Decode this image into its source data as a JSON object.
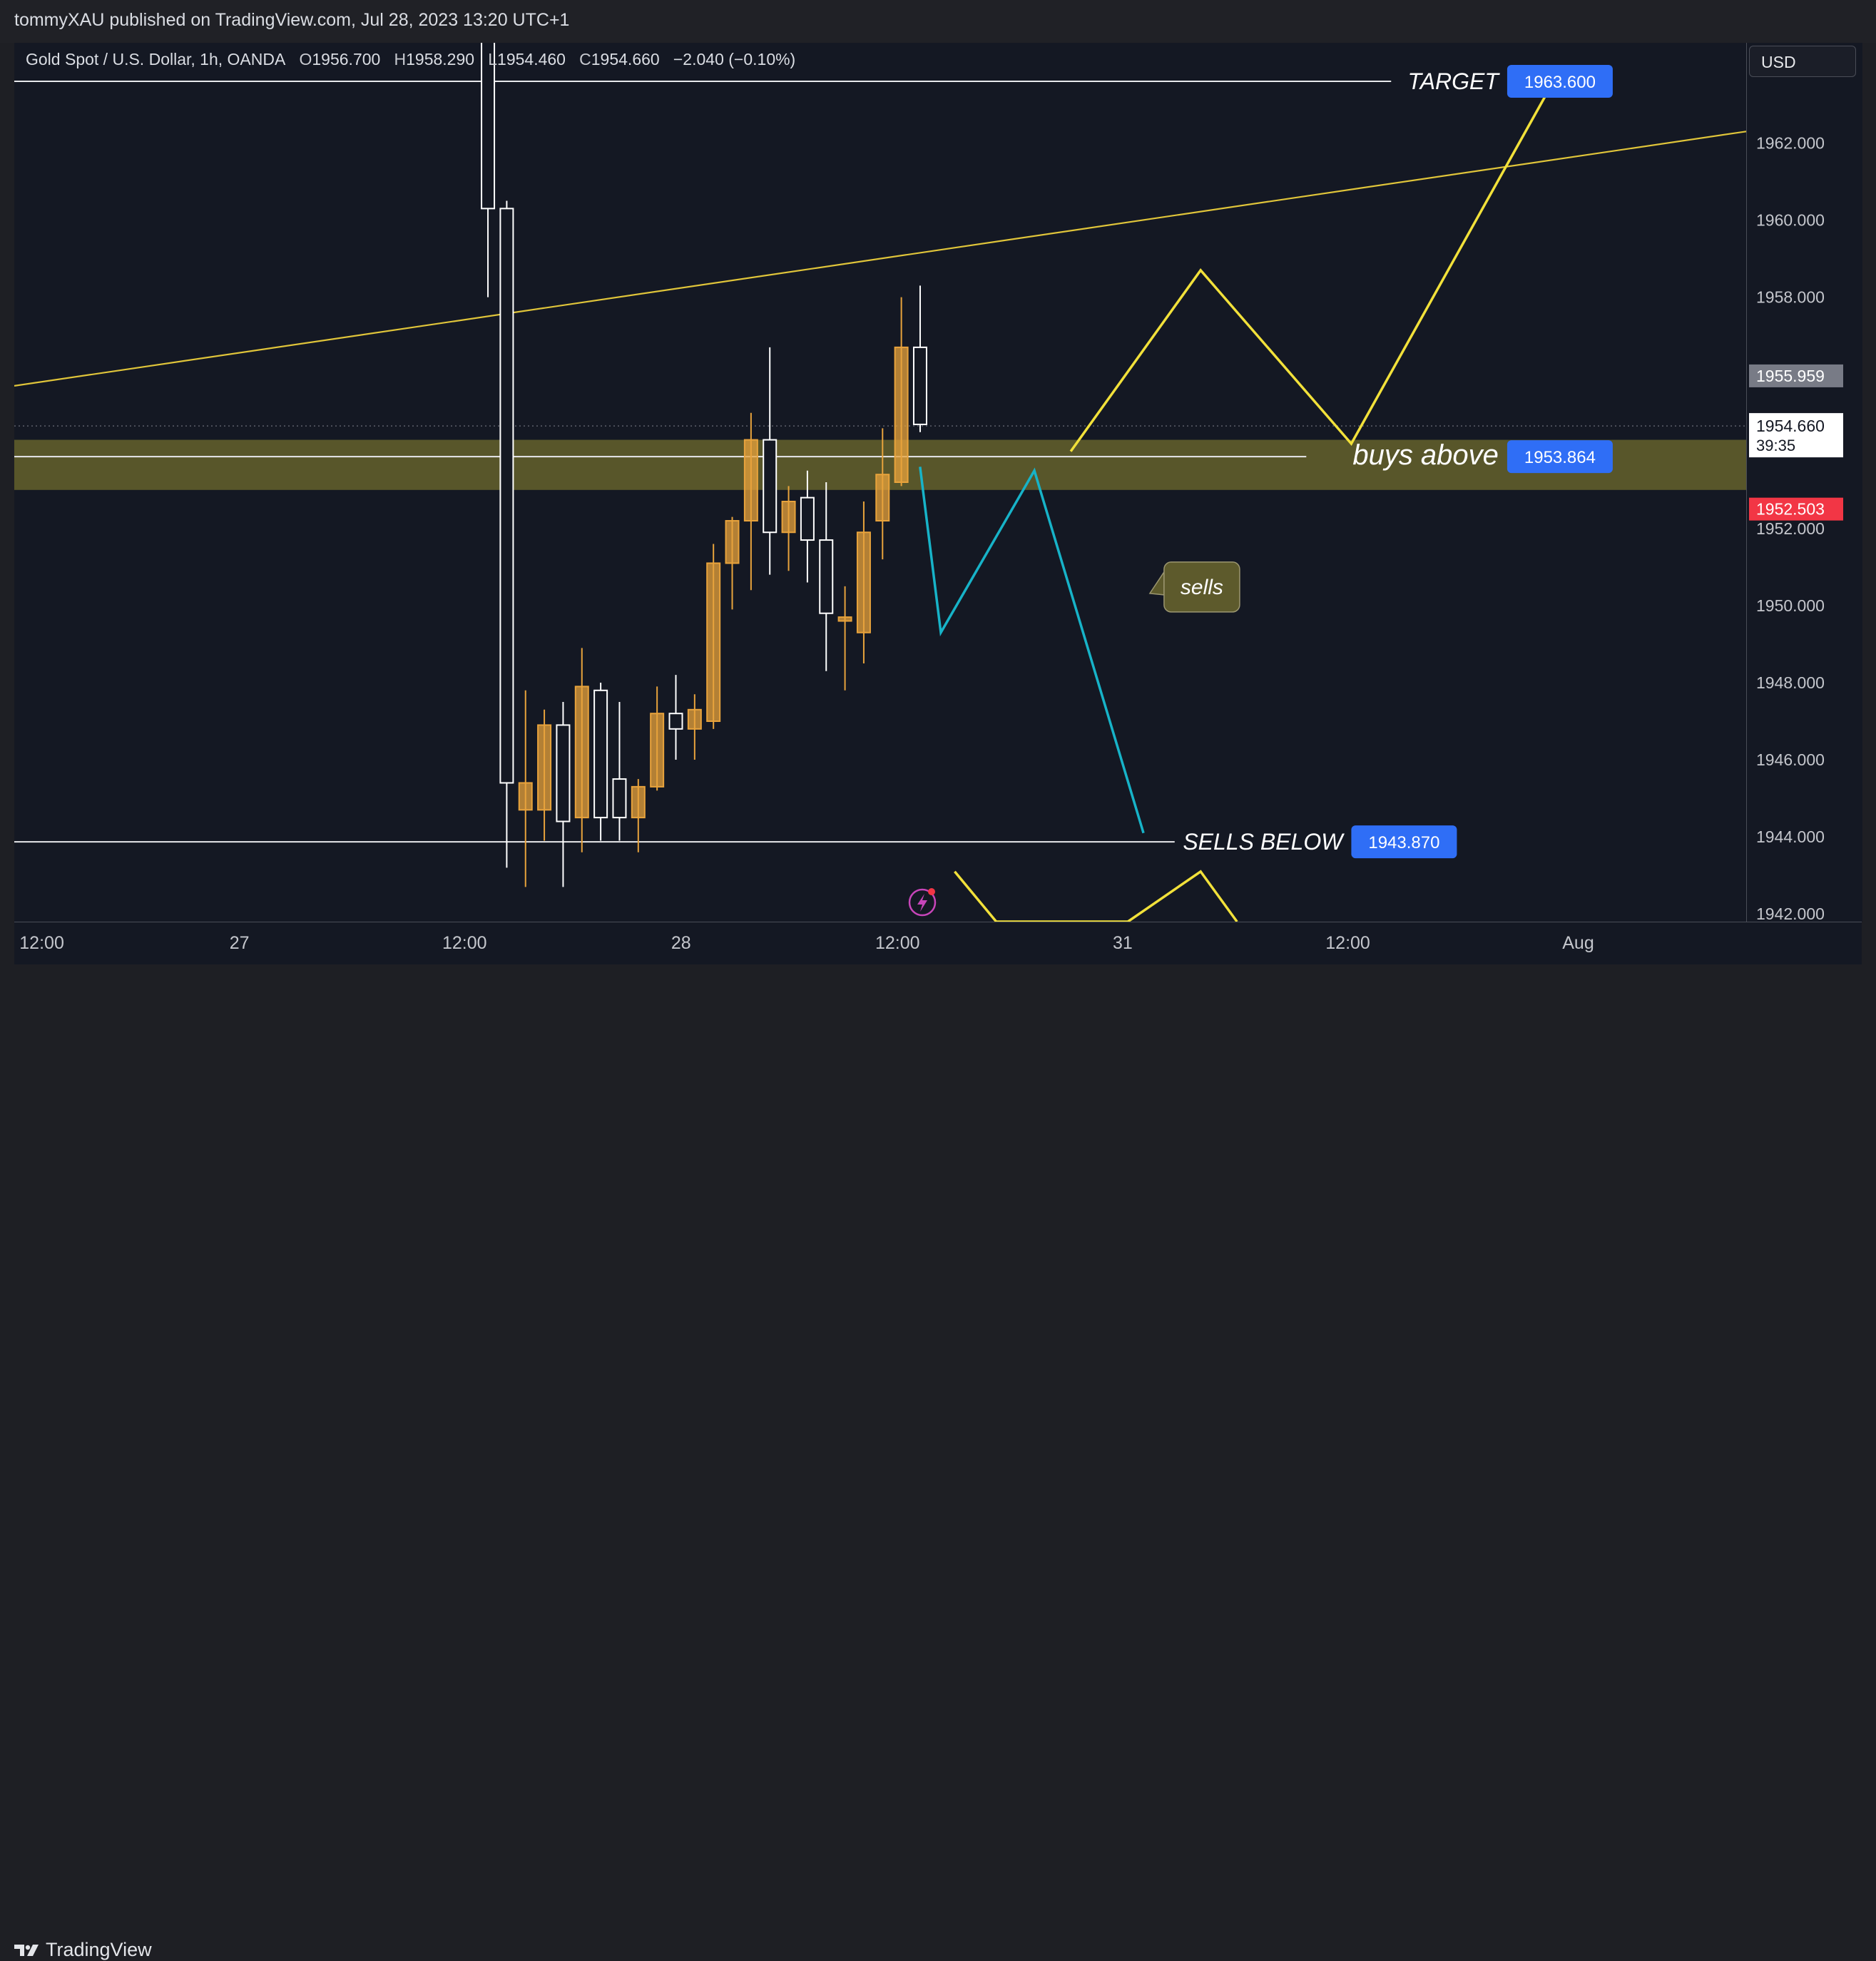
{
  "header": {
    "publisher": "tommyXAU published on TradingView.com, Jul 28, 2023 13:20 UTC+1"
  },
  "legend": {
    "symbol": "Gold Spot / U.S. Dollar, 1h, OANDA",
    "o_key": "O",
    "o_val": "1956.700",
    "h_key": "H",
    "h_val": "1958.290",
    "l_key": "L",
    "l_val": "1954.460",
    "c_key": "C",
    "c_val": "1954.660",
    "change": "−2.040 (−0.10%)"
  },
  "currency_button": "USD",
  "footer": {
    "brand": "TradingView"
  },
  "colors": {
    "background": "#141823",
    "bull_candle": "#e8a33c",
    "bear_candle": "#ffffff",
    "zone": "#5c5a2b",
    "projection_up": "#f2e13a",
    "projection_down": "#17b3c8",
    "trendline": "#e0c53a",
    "label_blue": "#2f6ef6",
    "price_red": "#f23645",
    "price_gray": "#787b86"
  },
  "chart_data": {
    "type": "candlestick",
    "symbol": "Gold Spot / U.S. Dollar",
    "interval": "1h",
    "ylim": [
      1941.8,
      1964.6
    ],
    "y_ticks": [
      1962,
      1960,
      1958,
      1956,
      1954,
      1952,
      1950,
      1948,
      1946,
      1944,
      1942
    ],
    "y_tick_labels": [
      "1962.000",
      "1960.000",
      "1958.000",
      "1956.000",
      "1954.000",
      "1952.000",
      "1950.000",
      "1948.000",
      "1946.000",
      "1944.000",
      "1942.000"
    ],
    "x_ticks": [
      {
        "label": "12:00",
        "x": 0.003
      },
      {
        "label": "27",
        "x": 0.13
      },
      {
        "label": "12:00",
        "x": 0.26
      },
      {
        "label": "28",
        "x": 0.385
      },
      {
        "label": "12:00",
        "x": 0.51
      },
      {
        "label": "31",
        "x": 0.64
      },
      {
        "label": "12:00",
        "x": 0.77
      },
      {
        "label": "Aug",
        "x": 0.903
      }
    ],
    "candles": [
      {
        "o": 1967.0,
        "h": 1970.0,
        "l": 1958.0,
        "c": 1960.3
      },
      {
        "o": 1960.3,
        "h": 1960.5,
        "l": 1943.2,
        "c": 1945.4
      },
      {
        "o": 1944.7,
        "h": 1947.8,
        "l": 1942.7,
        "c": 1945.4
      },
      {
        "o": 1944.7,
        "h": 1947.3,
        "l": 1943.9,
        "c": 1946.9
      },
      {
        "o": 1946.9,
        "h": 1947.5,
        "l": 1942.7,
        "c": 1944.4
      },
      {
        "o": 1944.5,
        "h": 1948.9,
        "l": 1943.6,
        "c": 1947.9
      },
      {
        "o": 1947.8,
        "h": 1948.0,
        "l": 1943.9,
        "c": 1944.5
      },
      {
        "o": 1945.5,
        "h": 1947.5,
        "l": 1943.9,
        "c": 1944.5
      },
      {
        "o": 1944.5,
        "h": 1945.5,
        "l": 1943.6,
        "c": 1945.3
      },
      {
        "o": 1945.3,
        "h": 1947.9,
        "l": 1945.2,
        "c": 1947.2
      },
      {
        "o": 1947.2,
        "h": 1948.2,
        "l": 1946.0,
        "c": 1946.8
      },
      {
        "o": 1946.8,
        "h": 1947.7,
        "l": 1946.0,
        "c": 1947.3
      },
      {
        "o": 1947.0,
        "h": 1951.6,
        "l": 1946.8,
        "c": 1951.1
      },
      {
        "o": 1951.1,
        "h": 1952.3,
        "l": 1949.9,
        "c": 1952.2
      },
      {
        "o": 1952.2,
        "h": 1955.0,
        "l": 1950.4,
        "c": 1954.3
      },
      {
        "o": 1954.3,
        "h": 1956.7,
        "l": 1950.8,
        "c": 1951.9
      },
      {
        "o": 1951.9,
        "h": 1953.1,
        "l": 1950.9,
        "c": 1952.7
      },
      {
        "o": 1952.8,
        "h": 1953.5,
        "l": 1950.6,
        "c": 1951.7
      },
      {
        "o": 1951.7,
        "h": 1953.2,
        "l": 1948.3,
        "c": 1949.8
      },
      {
        "o": 1949.6,
        "h": 1950.5,
        "l": 1947.8,
        "c": 1949.7
      },
      {
        "o": 1949.3,
        "h": 1952.7,
        "l": 1948.5,
        "c": 1951.9
      },
      {
        "o": 1952.2,
        "h": 1954.6,
        "l": 1951.2,
        "c": 1953.4
      },
      {
        "o": 1953.2,
        "h": 1958.0,
        "l": 1953.1,
        "c": 1956.7
      },
      {
        "o": 1956.7,
        "h": 1958.3,
        "l": 1954.5,
        "c": 1954.7
      }
    ],
    "levels": [
      {
        "name": "TARGET",
        "price": 1963.6,
        "label": "1963.600"
      },
      {
        "name": "buys above",
        "price": 1953.864,
        "label": "1953.864"
      },
      {
        "name": "SELLS BELOW",
        "price": 1943.87,
        "label": "1943.870"
      }
    ],
    "zone": {
      "top": 1954.3,
      "bottom": 1953.0
    },
    "trendline": [
      {
        "x": 0.0,
        "price": 1955.7
      },
      {
        "x": 1.0,
        "price": 1962.3
      }
    ],
    "projection_up": [
      {
        "x": 0.61,
        "price": 1954.0
      },
      {
        "x": 0.685,
        "price": 1958.7
      },
      {
        "x": 0.772,
        "price": 1954.2
      },
      {
        "x": 0.89,
        "price": 1963.7
      }
    ],
    "projection_up_lower": [
      {
        "x": 0.543,
        "price": 1943.1
      },
      {
        "x": 0.567,
        "price": 1941.8
      },
      {
        "x": 0.643,
        "price": 1941.8
      },
      {
        "x": 0.685,
        "price": 1943.1
      },
      {
        "x": 0.706,
        "price": 1941.8
      }
    ],
    "projection_down": [
      {
        "x": 0.523,
        "price": 1953.6
      },
      {
        "x": 0.535,
        "price": 1949.3
      },
      {
        "x": 0.589,
        "price": 1953.5
      },
      {
        "x": 0.652,
        "price": 1944.1
      }
    ],
    "annotation": {
      "text": "sells",
      "x": 0.668,
      "price": 1950.5
    },
    "price_labels": {
      "last_price": "1954.660",
      "countdown": "39:35",
      "upper_marker": "1955.959",
      "lower_marker": "1952.503",
      "last_price_value": 1954.66,
      "upper_marker_value": 1955.959,
      "lower_marker_value": 1952.503
    }
  }
}
